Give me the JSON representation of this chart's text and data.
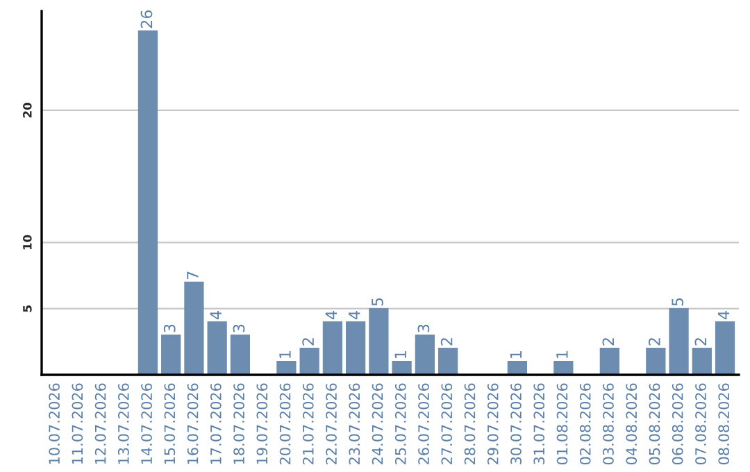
{
  "chart_data": {
    "type": "bar",
    "categories": [
      "10.07.2026",
      "11.07.2026",
      "12.07.2026",
      "13.07.2026",
      "14.07.2026",
      "15.07.2026",
      "16.07.2026",
      "17.07.2026",
      "18.07.2026",
      "19.07.2026",
      "20.07.2026",
      "21.07.2026",
      "22.07.2026",
      "23.07.2026",
      "24.07.2026",
      "25.07.2026",
      "26.07.2026",
      "27.07.2026",
      "28.07.2026",
      "29.07.2026",
      "30.07.2026",
      "31.07.2026",
      "01.08.2026",
      "02.08.2026",
      "03.08.2026",
      "04.08.2026",
      "05.08.2026",
      "06.08.2026",
      "07.08.2026",
      "08.08.2026"
    ],
    "values": [
      0,
      0,
      0,
      0,
      26,
      3,
      7,
      4,
      3,
      0,
      1,
      2,
      4,
      4,
      5,
      1,
      3,
      2,
      0,
      0,
      1,
      0,
      1,
      0,
      2,
      0,
      2,
      5,
      2,
      4
    ],
    "value_labels": [
      null,
      null,
      null,
      null,
      "26",
      "3",
      "7",
      "4",
      "3",
      null,
      "1",
      "2",
      "4",
      "4",
      "5",
      "1",
      "3",
      "2",
      null,
      null,
      "1",
      null,
      "1",
      null,
      "2",
      null,
      "2",
      "5",
      "2",
      "4"
    ],
    "color": "#6d8db0",
    "ylim": [
      0,
      27.5
    ],
    "yticks": [
      5,
      10,
      20
    ],
    "grid": "y"
  }
}
